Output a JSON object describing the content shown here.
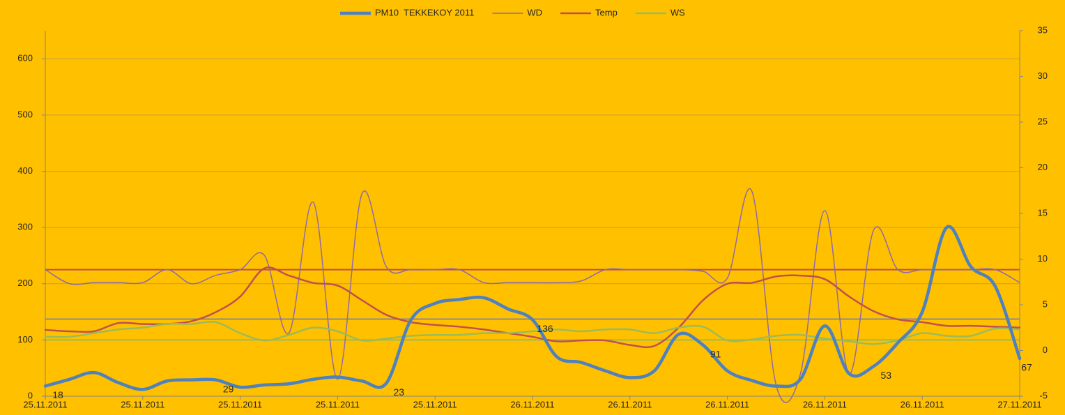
{
  "chart_data": {
    "type": "line",
    "categories": [
      "25.11.2011",
      null,
      null,
      null,
      "25.11.2011",
      null,
      null,
      null,
      "25.11.2011",
      null,
      null,
      null,
      "25.11.2011",
      null,
      null,
      null,
      "25.11.2011",
      null,
      null,
      null,
      "26.11.2011",
      null,
      null,
      null,
      "26.11.2011",
      null,
      null,
      null,
      "26.11.2011",
      null,
      null,
      null,
      "26.11.2011",
      null,
      null,
      null,
      "26.11.2011",
      null,
      null,
      null,
      "27.11.2011"
    ],
    "series": [
      {
        "name": "PM10  TEKKEKOY 2011",
        "color": "#4f81bd",
        "width": 4.5,
        "axis": "y",
        "values": [
          18,
          30,
          42,
          24,
          12,
          27,
          29,
          29,
          16,
          20,
          22,
          30,
          34,
          27,
          23,
          135,
          165,
          172,
          175,
          155,
          136,
          70,
          60,
          45,
          33,
          45,
          110,
          91,
          45,
          28,
          18,
          30,
          125,
          40,
          53,
          95,
          150,
          300,
          230,
          195,
          67
        ],
        "labeled_points": [
          0,
          7,
          14,
          20,
          27,
          34,
          40
        ]
      },
      {
        "name": "WD",
        "color": "#8e6aa8",
        "width": 1.5,
        "axis": "y",
        "values": [
          225,
          200,
          202,
          202,
          202,
          225,
          200,
          215,
          225,
          250,
          112,
          345,
          30,
          360,
          230,
          225,
          225,
          225,
          202,
          202,
          202,
          202,
          205,
          225,
          225,
          225,
          225,
          222,
          210,
          365,
          20,
          40,
          330,
          40,
          295,
          225,
          225,
          225,
          225,
          225,
          202
        ]
      },
      {
        "name": "Temp",
        "color": "#c0504d",
        "width": 2.5,
        "axis": "y2",
        "values": [
          2.25,
          2.1,
          2.1,
          3.0,
          2.9,
          2.9,
          3.2,
          4.2,
          5.9,
          9.0,
          8.2,
          7.4,
          7.1,
          5.5,
          3.9,
          3.1,
          2.8,
          2.6,
          2.3,
          1.9,
          1.5,
          1.0,
          1.1,
          1.1,
          0.6,
          0.5,
          2.5,
          5.5,
          7.3,
          7.4,
          8.1,
          8.2,
          7.8,
          5.9,
          4.3,
          3.4,
          3.1,
          2.7,
          2.7,
          2.6,
          2.5
        ]
      },
      {
        "name": "WS",
        "color": "#9bbb59",
        "width": 2.5,
        "axis": "y2",
        "values": [
          1.5,
          1.5,
          1.9,
          2.3,
          2.5,
          2.9,
          2.9,
          3.1,
          1.9,
          1.1,
          1.7,
          2.5,
          2.1,
          1.1,
          1.3,
          1.6,
          1.7,
          1.7,
          1.9,
          1.9,
          2.1,
          2.3,
          2.1,
          2.3,
          2.3,
          1.9,
          2.5,
          2.6,
          1.1,
          1.2,
          1.6,
          1.7,
          1.3,
          1.0,
          0.7,
          1.1,
          1.9,
          1.6,
          1.6,
          2.4,
          2.3
        ]
      }
    ],
    "reference_lines": [
      {
        "value": 225,
        "color": "#c0504d"
      },
      {
        "value": 137,
        "color": "#8c8c8c"
      },
      {
        "value": 100,
        "color": "#9bbb59"
      }
    ],
    "ylim": [
      0,
      650
    ],
    "yticks": [
      0,
      100,
      200,
      300,
      400,
      500,
      600
    ],
    "y2lim": [
      -5,
      35
    ],
    "y2ticks": [
      -5,
      0,
      5,
      10,
      15,
      20,
      25,
      30,
      35
    ],
    "grid": true,
    "legend": "top",
    "smooth": true
  }
}
